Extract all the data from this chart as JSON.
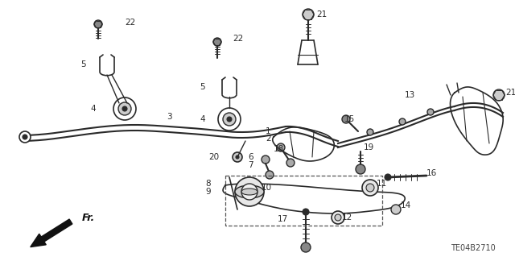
{
  "background_color": "#ffffff",
  "diagram_code": "TE04B2710",
  "fr_label": "Fr.",
  "figsize": [
    6.4,
    3.19
  ],
  "dpi": 100,
  "line_color": "#2a2a2a",
  "label_fontsize": 7.5
}
